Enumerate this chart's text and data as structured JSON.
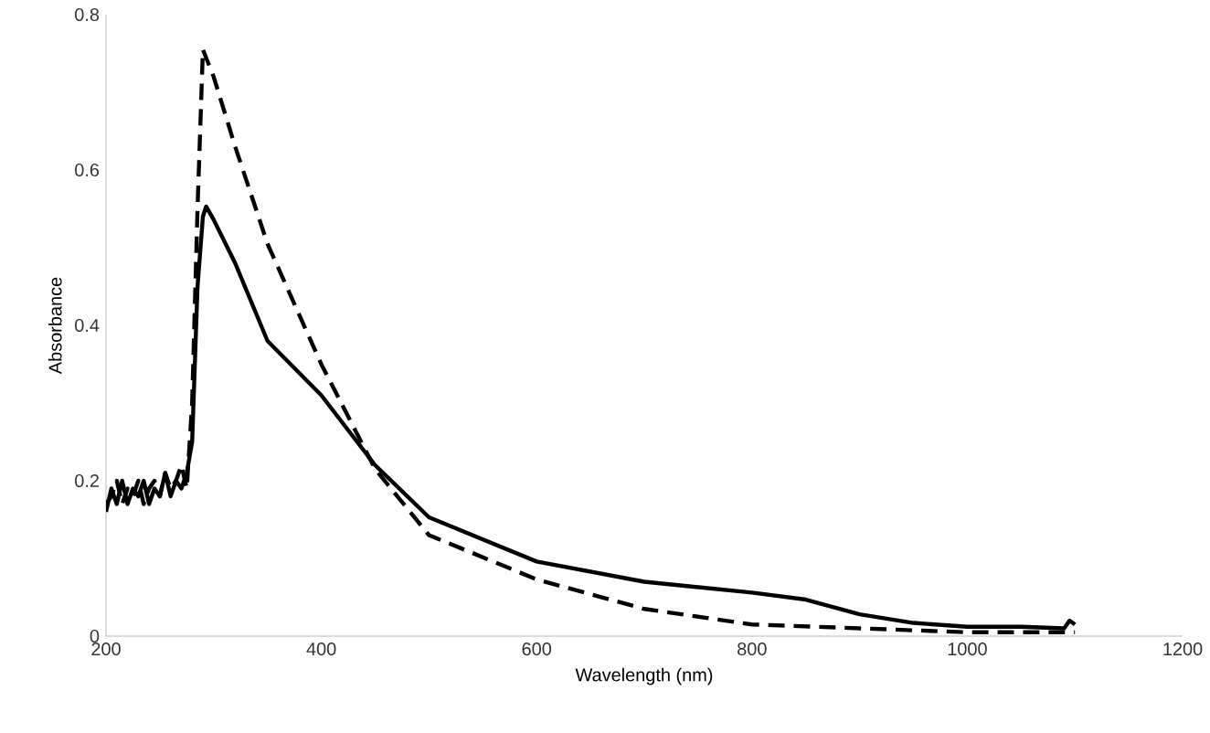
{
  "chart_data": {
    "type": "line",
    "xlabel": "Wavelength (nm)",
    "ylabel": "Absorbance",
    "xlim": [
      200,
      1200
    ],
    "ylim": [
      0,
      0.8
    ],
    "xticks": [
      200,
      400,
      600,
      800,
      1000,
      1200
    ],
    "yticks": [
      0,
      0.2,
      0.4,
      0.6,
      0.8
    ],
    "grid": false,
    "marker": "none",
    "series": [
      {
        "color": "#000000",
        "line_style": "solid",
        "x": [
          200,
          205,
          210,
          215,
          220,
          225,
          230,
          235,
          240,
          245,
          250,
          255,
          260,
          265,
          270,
          275,
          280,
          285,
          290,
          293,
          300,
          320,
          350,
          375,
          400,
          450,
          500,
          600,
          700,
          800,
          850,
          900,
          950,
          1000,
          1050,
          1090,
          1095,
          1100
        ],
        "values": [
          0.16,
          0.19,
          0.17,
          0.2,
          0.17,
          0.19,
          0.18,
          0.2,
          0.17,
          0.19,
          0.18,
          0.21,
          0.18,
          0.2,
          0.19,
          0.21,
          0.25,
          0.45,
          0.54,
          0.553,
          0.536,
          0.48,
          0.38,
          0.345,
          0.31,
          0.22,
          0.153,
          0.096,
          0.07,
          0.056,
          0.047,
          0.028,
          0.017,
          0.012,
          0.012,
          0.01,
          0.02,
          0.015
        ]
      },
      {
        "color": "#000000",
        "line_style": "dashed",
        "x": [
          200,
          205,
          210,
          215,
          220,
          225,
          230,
          235,
          240,
          245,
          250,
          255,
          260,
          265,
          270,
          275,
          280,
          285,
          290,
          300,
          320,
          350,
          400,
          450,
          500,
          600,
          700,
          800,
          900,
          1000,
          1100
        ],
        "values": [
          0.17,
          0.18,
          0.2,
          0.17,
          0.19,
          0.18,
          0.2,
          0.17,
          0.19,
          0.2,
          0.18,
          0.21,
          0.19,
          0.2,
          0.22,
          0.19,
          0.3,
          0.55,
          0.755,
          0.72,
          0.63,
          0.505,
          0.35,
          0.215,
          0.13,
          0.073,
          0.035,
          0.015,
          0.01,
          0.005,
          0.005
        ]
      }
    ]
  }
}
